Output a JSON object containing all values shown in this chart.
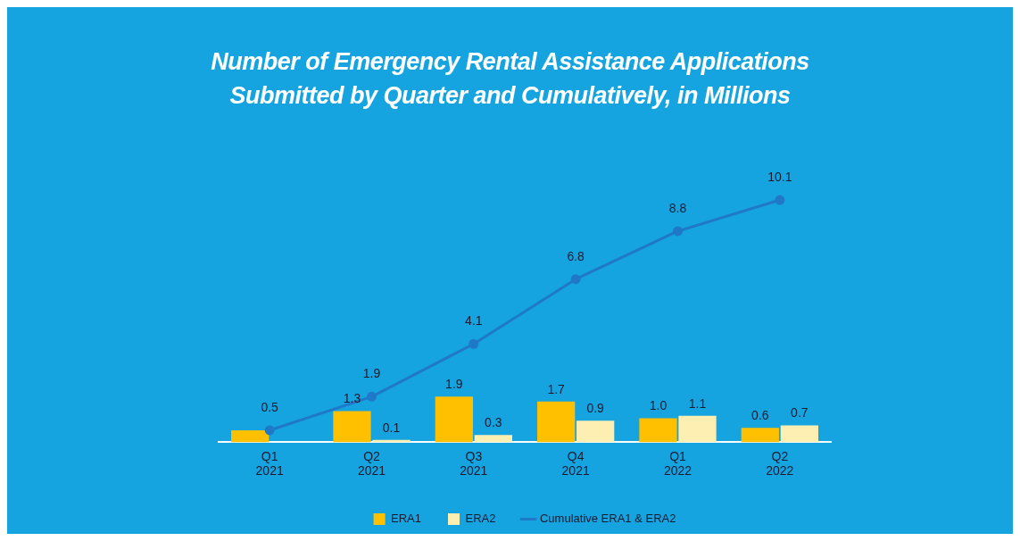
{
  "chart_data": {
    "type": "bar",
    "title": "Number of Emergency Rental Assistance Applications Submitted by Quarter and Cumulatively, in Millions",
    "categories": [
      "Q1\n2021",
      "Q2\n2021",
      "Q3\n2021",
      "Q4\n2021",
      "Q1\n2022",
      "Q2\n2022"
    ],
    "series": [
      {
        "name": "ERA1",
        "color": "#ffc000",
        "values": [
          0.5,
          1.3,
          1.9,
          1.7,
          1.0,
          0.6
        ],
        "value_labels": [
          null,
          "1.3",
          "1.9",
          "1.7",
          "1.0",
          "0.6"
        ]
      },
      {
        "name": "ERA2",
        "color": "#fdefb2",
        "values": [
          0,
          0.1,
          0.3,
          0.9,
          1.1,
          0.7
        ],
        "value_labels": [
          null,
          "0.1",
          "0.3",
          "0.9",
          "1.1",
          "0.7"
        ]
      },
      {
        "name": "Cumulative ERA1 & ERA2",
        "type": "line",
        "color": "#1f78c8",
        "values": [
          0.5,
          1.9,
          4.1,
          6.8,
          8.8,
          10.1
        ],
        "value_labels": [
          "0.5",
          "1.9",
          "4.1",
          "6.8",
          "8.8",
          "10.1"
        ]
      }
    ],
    "legend": "bottom",
    "marker": "circle",
    "grid": false
  }
}
